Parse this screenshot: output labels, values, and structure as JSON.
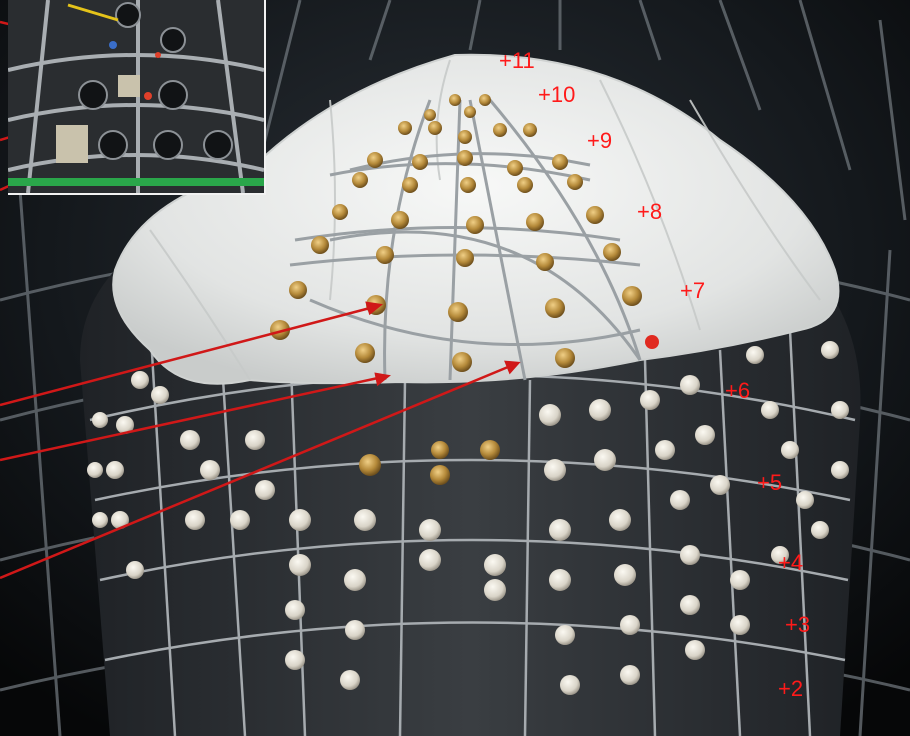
{
  "ring_labels": [
    "+11",
    "+10",
    "+9",
    "+8",
    "+7",
    "+6",
    "+5",
    "+4",
    "+3",
    "+2"
  ],
  "colors": {
    "label": "#ff1a1a",
    "pointer": "#d01818",
    "canopy": "#e9ebe9",
    "frame": "#b7bcbf",
    "pmt": "#d6d3cb",
    "pmt_gold": "#b58a3a",
    "background": "#0a0c0f"
  }
}
